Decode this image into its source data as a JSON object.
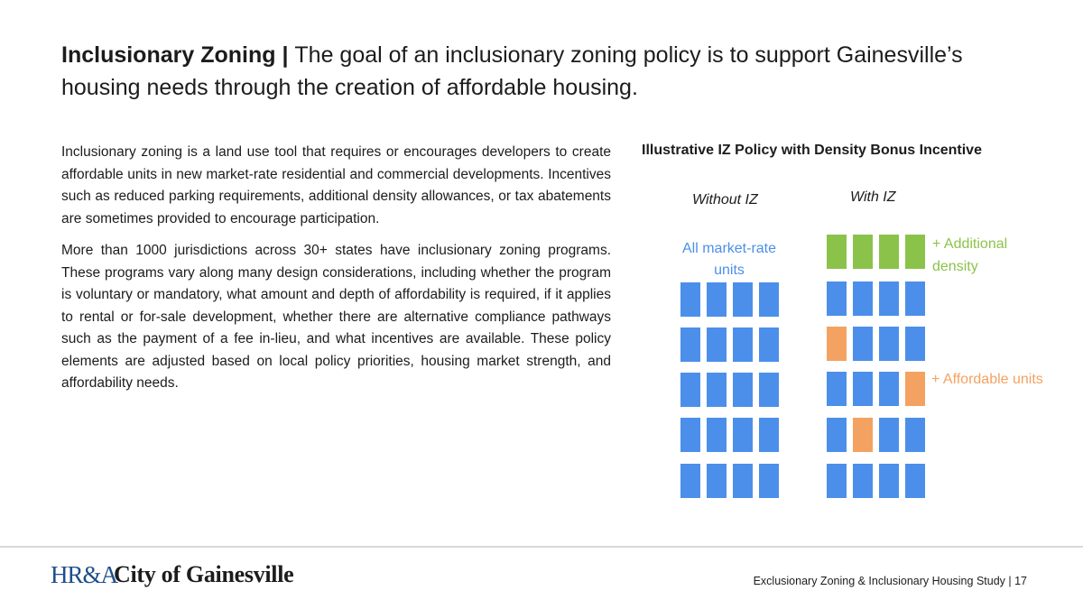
{
  "title": {
    "bold": "Inclusionary Zoning | ",
    "rest": "The goal of an inclusionary zoning policy is to support Gainesville’s housing needs through the creation of affordable housing."
  },
  "body": {
    "p1": "Inclusionary zoning is a land use tool that requires or encourages developers to create affordable units in new market-rate residential and commercial developments. Incentives such as reduced parking requirements, additional density allowances, or tax abatements are sometimes provided to encourage participation.",
    "p2": "More than 1000 jurisdictions across 30+ states have inclusionary zoning programs. These programs vary along many design considerations, including whether the program is voluntary or mandatory, what amount and depth of affordability is required, if it applies to rental or for-sale development, whether there are alternative compliance pathways such as the payment of a fee in-lieu, and what incentives are available. These policy elements are adjusted based on local policy priorities, housing market strength, and affordability needs."
  },
  "figure": {
    "title": "Illustrative IZ Policy with Density Bonus Incentive",
    "without_label": "Without IZ",
    "with_label": "With IZ",
    "market_rate_label": "All market-rate units",
    "additional_label": "+ Additional density",
    "affordable_label": "+ Affordable units",
    "colors": {
      "market": "#4c8fea",
      "additional": "#8bc34a",
      "affordable": "#f4a261"
    },
    "without_grid": [
      [
        "m",
        "m",
        "m",
        "m"
      ],
      [
        "m",
        "m",
        "m",
        "m"
      ],
      [
        "m",
        "m",
        "m",
        "m"
      ],
      [
        "m",
        "m",
        "m",
        "m"
      ],
      [
        "m",
        "m",
        "m",
        "m"
      ]
    ],
    "with_grid": [
      [
        "d",
        "d",
        "d",
        "d"
      ],
      [
        "m",
        "m",
        "m",
        "m"
      ],
      [
        "a",
        "m",
        "m",
        "m"
      ],
      [
        "m",
        "m",
        "m",
        "a"
      ],
      [
        "m",
        "a",
        "m",
        "m"
      ],
      [
        "m",
        "m",
        "m",
        "m"
      ]
    ]
  },
  "footer": {
    "logo_mark": "HR&A",
    "logo_city": "City of Gainesville",
    "text": "Exclusionary Zoning & Inclusionary Housing Study | 17"
  }
}
